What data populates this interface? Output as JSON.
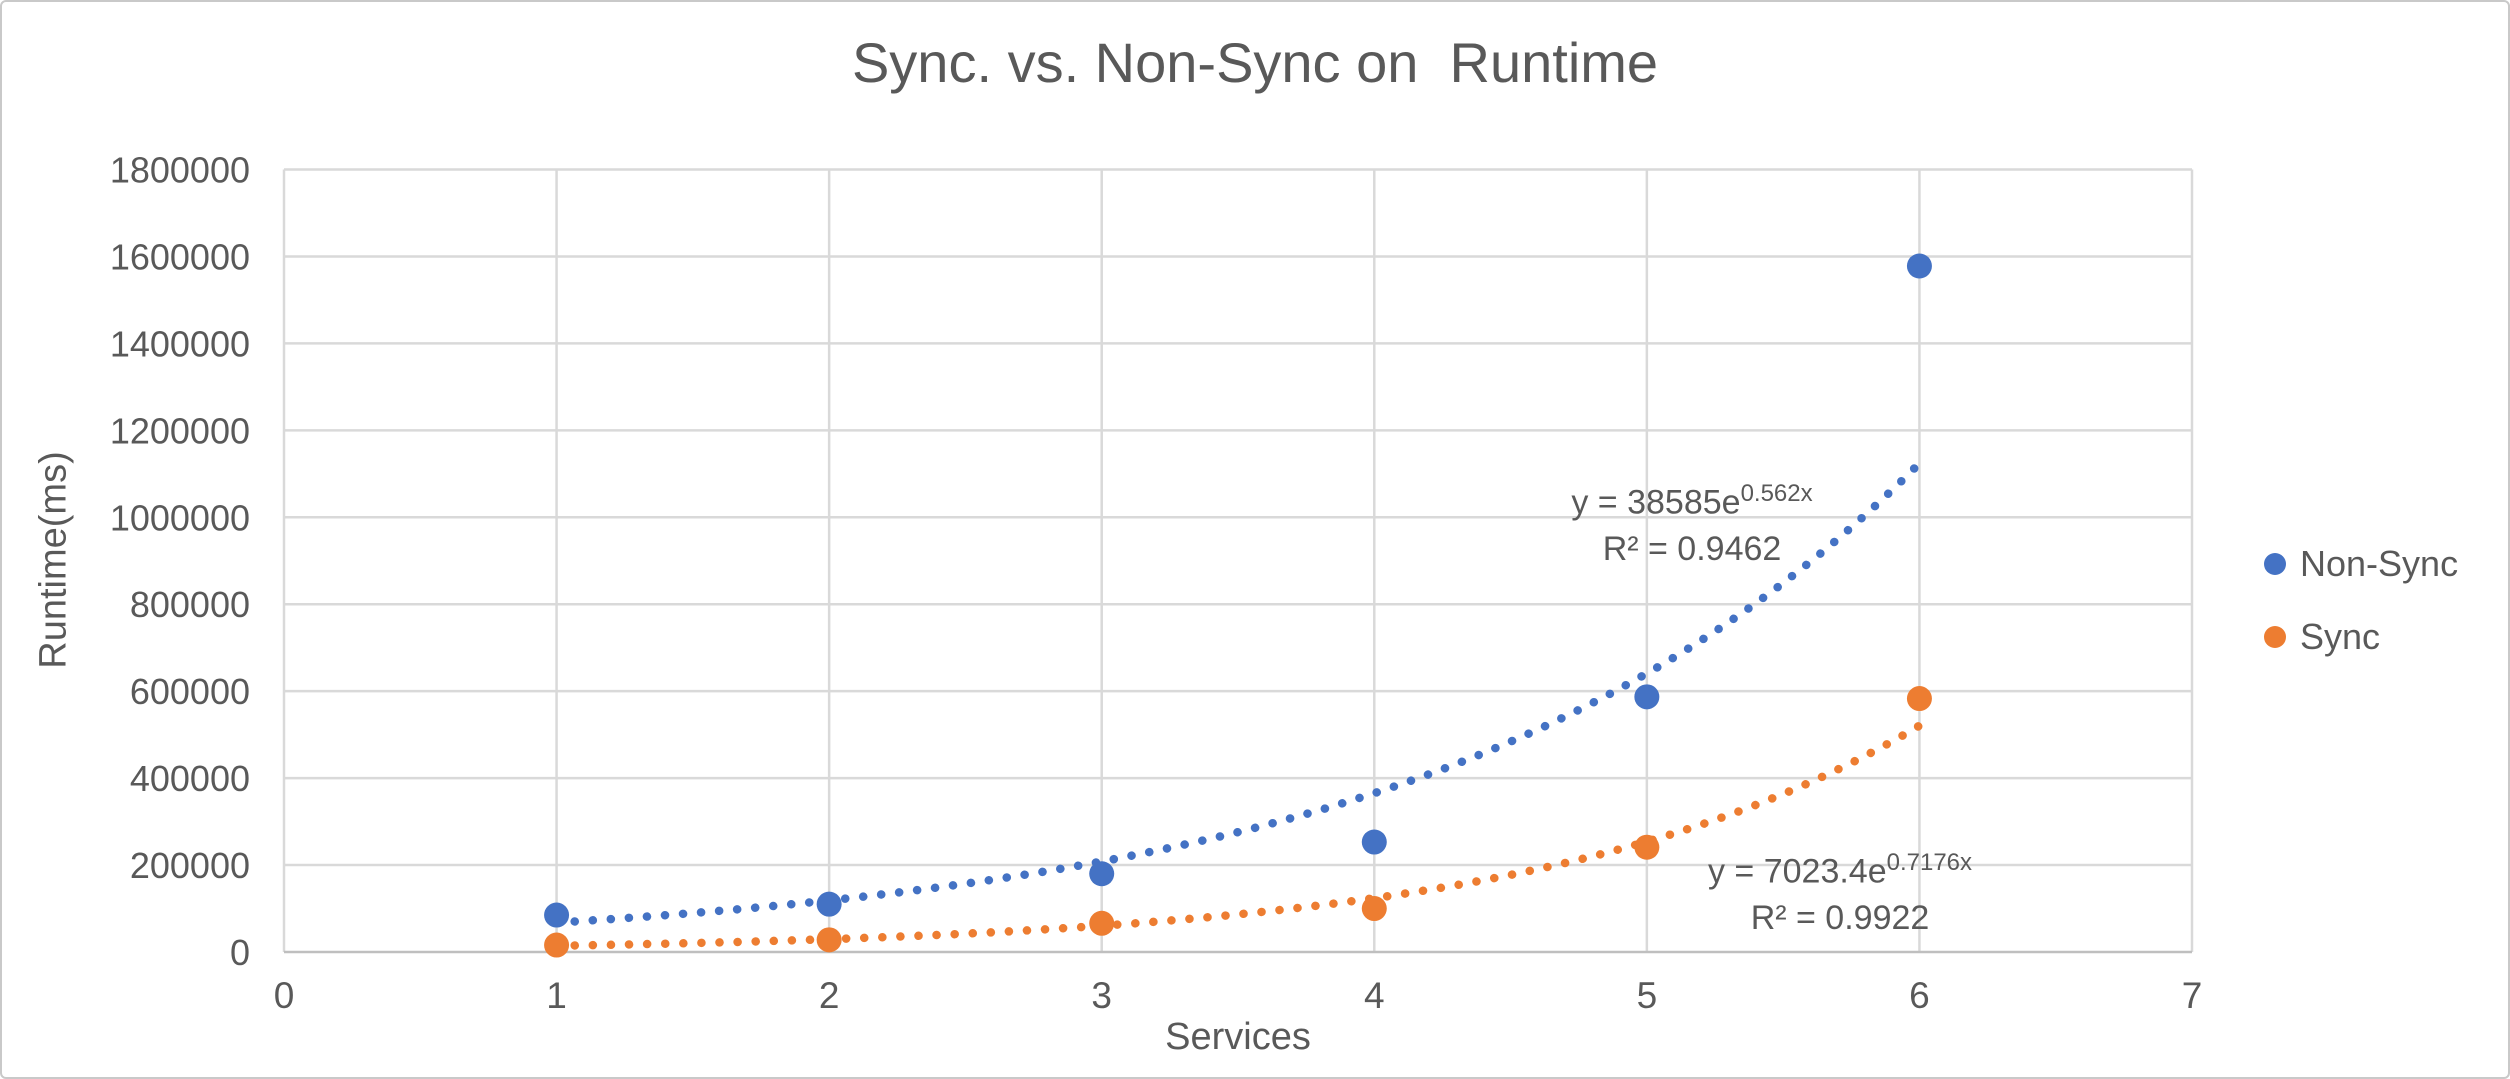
{
  "window": {
    "background": "#ffffff",
    "border_color": "#c9c9c9",
    "text_color": "#595959",
    "gridline_color": "#d9d9d9",
    "axis_line_color": "#bfbfbf"
  },
  "chart_data": {
    "type": "scatter",
    "title": "Sync. vs. Non-Sync on  Runtime",
    "xlabel": "Services",
    "ylabel": "Runtime(ms)",
    "xlim": [
      0,
      7
    ],
    "ylim": [
      0,
      1800000
    ],
    "x_ticks": [
      0,
      1,
      2,
      3,
      4,
      5,
      6,
      7
    ],
    "y_ticks": [
      0,
      200000,
      400000,
      600000,
      800000,
      1000000,
      1200000,
      1400000,
      1600000,
      1800000
    ],
    "grid": true,
    "legend_position": "right",
    "series": [
      {
        "name": "Non-Sync",
        "color": "#4472C4",
        "x": [
          1,
          2,
          3,
          4,
          5,
          6
        ],
        "y": [
          85000,
          110000,
          180000,
          253000,
          587000,
          1578000
        ],
        "trendline": {
          "type": "exponential",
          "a": 38585,
          "b": 0.562,
          "x_range": [
            1,
            6
          ],
          "equation_prefix": "y = 38585e",
          "exponent": "0.562x",
          "r2": "R² = 0.9462"
        }
      },
      {
        "name": "Sync",
        "color": "#ED7D31",
        "x": [
          1,
          2,
          3,
          4,
          5,
          6
        ],
        "y": [
          16000,
          28000,
          66000,
          100000,
          241000,
          583000
        ],
        "trendline": {
          "type": "exponential",
          "a": 7023.4,
          "b": 0.7176,
          "x_range": [
            1,
            6
          ],
          "equation_prefix": "y = 7023.4e",
          "exponent": "0.7176x",
          "r2": "R² = 0.9922"
        }
      }
    ]
  }
}
